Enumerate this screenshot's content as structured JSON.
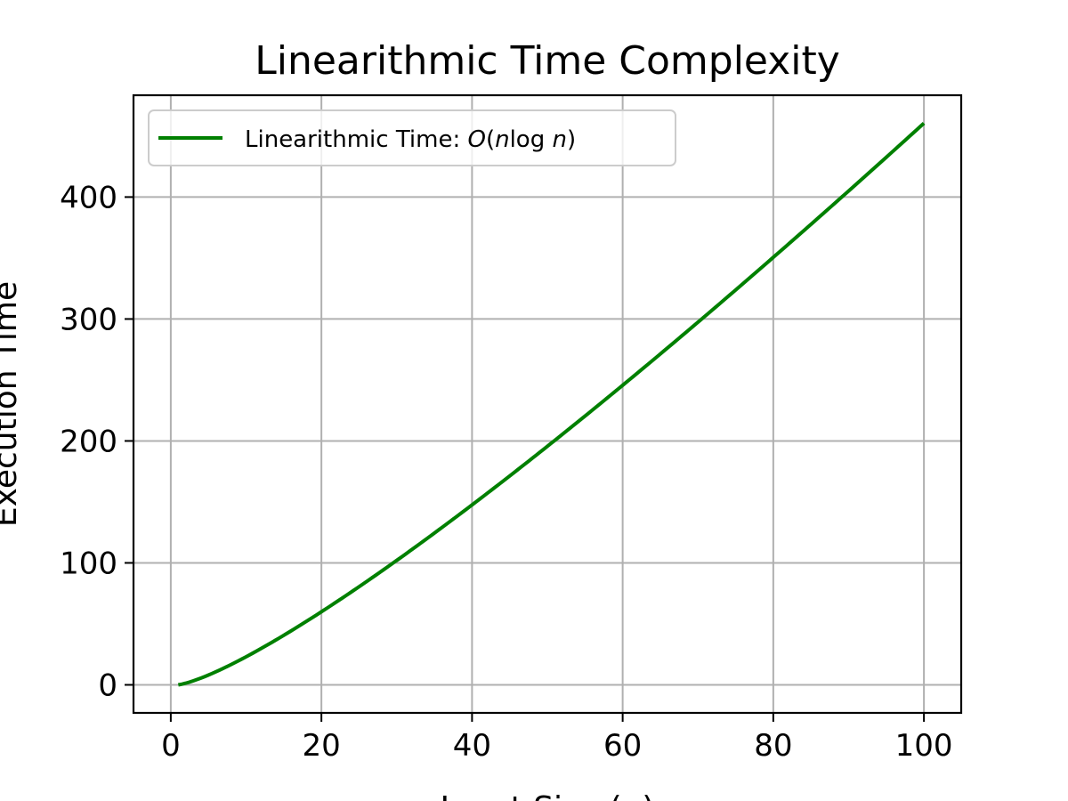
{
  "chart_data": {
    "type": "line",
    "title": "Linearithmic Time Complexity",
    "xlabel": "Input Size (n)",
    "ylabel": "Execution Time",
    "xlim": [
      -4.95,
      104.95
    ],
    "ylim": [
      -23.0,
      483.5
    ],
    "xticks": [
      0,
      20,
      40,
      60,
      80,
      100
    ],
    "yticks": [
      0,
      100,
      200,
      300,
      400
    ],
    "grid": true,
    "legend_position": "upper-left",
    "series": [
      {
        "name": "Linearithmic Time: O(n log n)",
        "color": "#008000",
        "function": "n*ln(n)",
        "x_range": [
          1,
          100
        ],
        "x": [
          1,
          2,
          5,
          10,
          20,
          30,
          40,
          50,
          60,
          70,
          80,
          90,
          100
        ],
        "y": [
          0,
          1.39,
          8.05,
          23.0,
          59.9,
          102.0,
          147.6,
          195.6,
          245.7,
          297.4,
          350.6,
          405.0,
          460.5
        ]
      }
    ]
  },
  "colors": {
    "grid": "#b0b0b0",
    "axes": "#000000",
    "legend_border": "#cccccc"
  }
}
